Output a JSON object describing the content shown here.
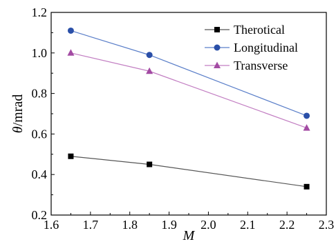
{
  "chart_data": {
    "type": "line",
    "title": "",
    "xlabel": "M",
    "ylabel_symbol": "θ",
    "ylabel_unit": "/mrad",
    "xlim": [
      1.6,
      2.3
    ],
    "ylim": [
      0.2,
      1.2
    ],
    "xticks": [
      1.6,
      1.7,
      1.8,
      1.9,
      2.0,
      2.1,
      2.2,
      2.3
    ],
    "xtick_labels": [
      "1.6",
      "1.7",
      "1.8",
      "1.9",
      "2.0",
      "2.1",
      "2.2",
      "2.3"
    ],
    "yticks": [
      0.2,
      0.4,
      0.6,
      0.8,
      1.0,
      1.2
    ],
    "ytick_labels": [
      "0.2",
      "0.4",
      "0.6",
      "0.8",
      "1.0",
      "1.2"
    ],
    "grid": false,
    "legend_position": "top-right",
    "x": [
      1.65,
      1.85,
      2.25
    ],
    "series": [
      {
        "name": "Therotical",
        "marker": "square",
        "color": "#000000",
        "line_color": "#555555",
        "values": [
          0.49,
          0.45,
          0.34
        ]
      },
      {
        "name": "Longitudinal",
        "marker": "circle",
        "color": "#2a4fa8",
        "line_color": "#5b7fc9",
        "values": [
          1.11,
          0.99,
          0.69
        ]
      },
      {
        "name": "Transverse",
        "marker": "triangle",
        "color": "#a34ba3",
        "line_color": "#c27ec2",
        "values": [
          1.0,
          0.91,
          0.63
        ]
      }
    ]
  }
}
